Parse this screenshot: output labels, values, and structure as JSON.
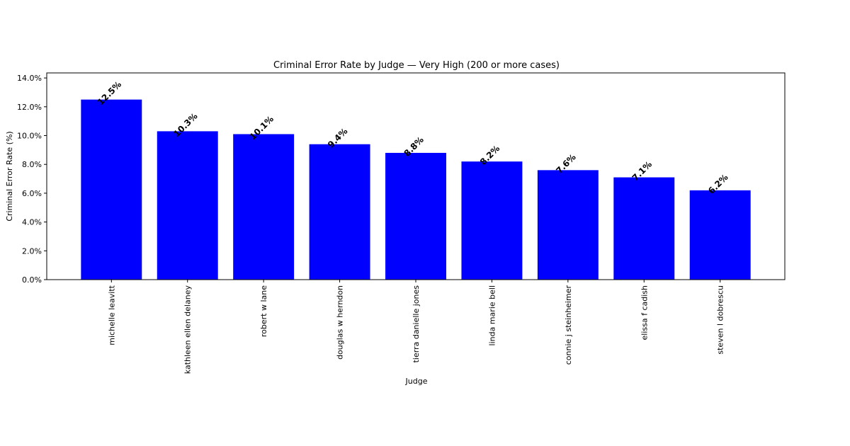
{
  "chart_data": {
    "type": "bar",
    "title": "Criminal Error Rate by Judge — Very High (200 or more cases)",
    "x_label": "Judge",
    "y_label": "Criminal Error Rate (%)",
    "categories": [
      "michelle leavitt",
      "kathleen ellen delaney",
      "robert w lane",
      "douglas w herndon",
      "tierra danielle jones",
      "linda marie bell",
      "connie j steinheimer",
      "elissa f cadish",
      "steven l dobrescu"
    ],
    "values": [
      12.5,
      10.3,
      10.1,
      9.4,
      8.8,
      8.2,
      7.6,
      7.1,
      6.2
    ],
    "value_labels": [
      "12.5%",
      "10.3%",
      "10.1%",
      "9.4%",
      "8.8%",
      "8.2%",
      "7.6%",
      "7.1%",
      "6.2%"
    ],
    "color": "#0000ff",
    "ylim": [
      0,
      14.35
    ],
    "yticks": [
      {
        "value": 0,
        "label": "0.0%"
      },
      {
        "value": 2,
        "label": "2.0%"
      },
      {
        "value": 4,
        "label": "4.0%"
      },
      {
        "value": 6,
        "label": "6.0%"
      },
      {
        "value": 8,
        "label": "8.0%"
      },
      {
        "value": 10,
        "label": "10.0%"
      },
      {
        "value": 12,
        "label": "12.0%"
      },
      {
        "value": 14,
        "label": "14.0%"
      }
    ],
    "grid": false
  }
}
